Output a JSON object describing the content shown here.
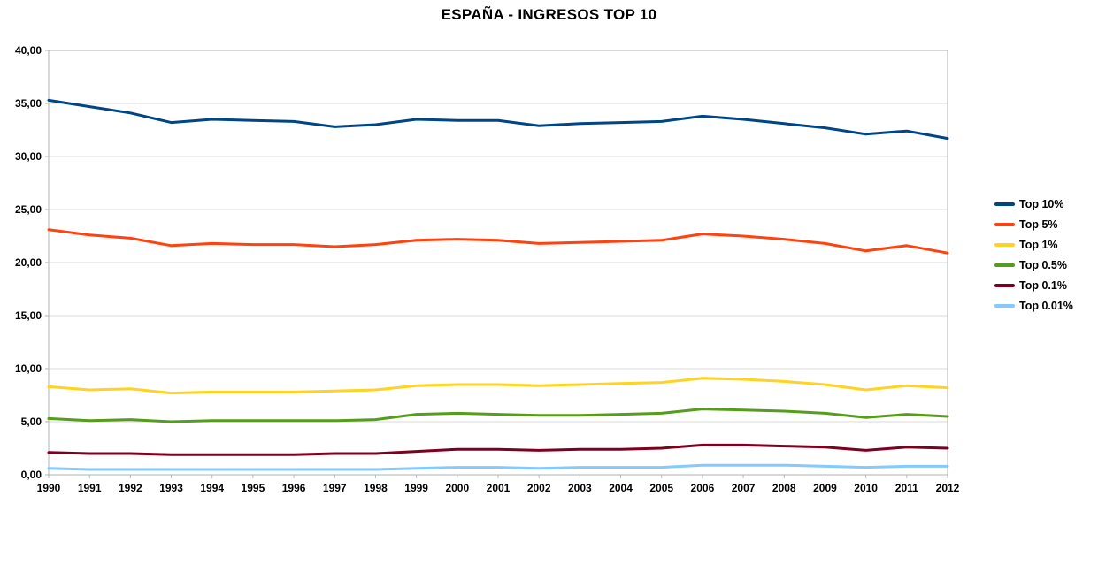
{
  "page": {
    "background": "#FFFFFF"
  },
  "chart_data": {
    "type": "line",
    "title": "ESPAÑA - INGRESOS TOP 10",
    "x": [
      1990,
      1991,
      1992,
      1993,
      1994,
      1995,
      1996,
      1997,
      1998,
      1999,
      2000,
      2001,
      2002,
      2003,
      2004,
      2005,
      2006,
      2007,
      2008,
      2009,
      2010,
      2011,
      2012
    ],
    "y_axis": {
      "min": 0,
      "max": 40,
      "step": 5,
      "tick_labels": [
        "0,00",
        "5,00",
        "10,00",
        "15,00",
        "20,00",
        "25,00",
        "30,00",
        "35,00",
        "40,00"
      ]
    },
    "grid": "horizontal",
    "legend_position": "right",
    "series": [
      {
        "name": "Top 10%",
        "color": "#004586",
        "values": [
          35.3,
          34.7,
          34.1,
          33.2,
          33.5,
          33.4,
          33.3,
          32.8,
          33.0,
          33.5,
          33.4,
          33.4,
          32.9,
          33.1,
          33.2,
          33.3,
          33.8,
          33.5,
          33.1,
          32.7,
          32.1,
          32.4,
          31.7
        ]
      },
      {
        "name": "Top 5%",
        "color": "#FF420E",
        "values": [
          23.1,
          22.6,
          22.3,
          21.6,
          21.8,
          21.7,
          21.7,
          21.5,
          21.7,
          22.1,
          22.2,
          22.1,
          21.8,
          21.9,
          22.0,
          22.1,
          22.7,
          22.5,
          22.2,
          21.8,
          21.1,
          21.6,
          20.9
        ]
      },
      {
        "name": "Top 1%",
        "color": "#FFD320",
        "values": [
          8.3,
          8.0,
          8.1,
          7.7,
          7.8,
          7.8,
          7.8,
          7.9,
          8.0,
          8.4,
          8.5,
          8.5,
          8.4,
          8.5,
          8.6,
          8.7,
          9.1,
          9.0,
          8.8,
          8.5,
          8.0,
          8.4,
          8.2
        ]
      },
      {
        "name": "Top 0.5%",
        "color": "#579D1C",
        "values": [
          5.3,
          5.1,
          5.2,
          5.0,
          5.1,
          5.1,
          5.1,
          5.1,
          5.2,
          5.7,
          5.8,
          5.7,
          5.6,
          5.6,
          5.7,
          5.8,
          6.2,
          6.1,
          6.0,
          5.8,
          5.4,
          5.7,
          5.5
        ]
      },
      {
        "name": "Top 0.1%",
        "color": "#7E0021",
        "values": [
          2.1,
          2.0,
          2.0,
          1.9,
          1.9,
          1.9,
          1.9,
          2.0,
          2.0,
          2.2,
          2.4,
          2.4,
          2.3,
          2.4,
          2.4,
          2.5,
          2.8,
          2.8,
          2.7,
          2.6,
          2.3,
          2.6,
          2.5
        ]
      },
      {
        "name": "Top 0.01%",
        "color": "#83CAFF",
        "values": [
          0.6,
          0.5,
          0.5,
          0.5,
          0.5,
          0.5,
          0.5,
          0.5,
          0.5,
          0.6,
          0.7,
          0.7,
          0.6,
          0.7,
          0.7,
          0.7,
          0.9,
          0.9,
          0.9,
          0.8,
          0.7,
          0.8,
          0.8
        ]
      }
    ],
    "colors": {
      "gridline": "#D9D9D9",
      "plot_border": "#B3B3B3",
      "text": "#000000"
    }
  }
}
